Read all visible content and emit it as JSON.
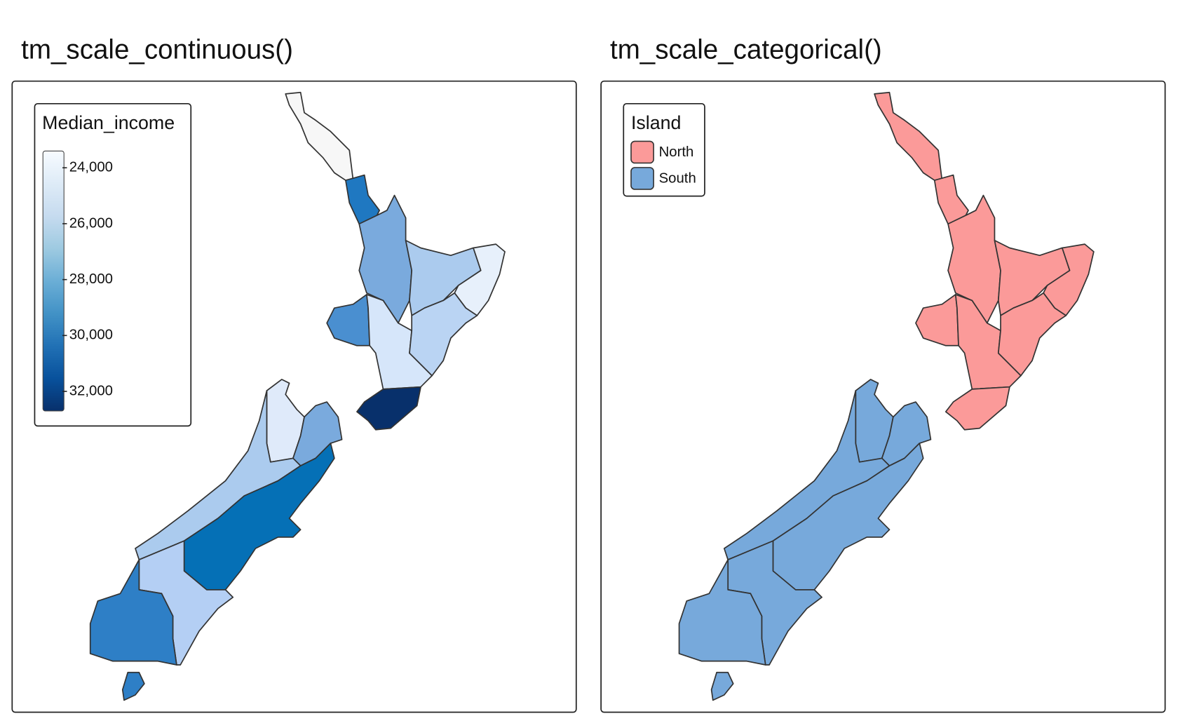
{
  "panels": [
    {
      "title": "tm_scale_continuous()",
      "legend": {
        "title": "Median_income",
        "range": [
          23400,
          32700
        ],
        "colors": [
          "#f7fbff",
          "#deebf7",
          "#c6dbef",
          "#9ecae1",
          "#6baed6",
          "#4292c6",
          "#2171b5",
          "#08519c",
          "#08306b"
        ],
        "ticks": [
          {
            "value": 24000,
            "label": "24,000"
          },
          {
            "value": 26000,
            "label": "26,000"
          },
          {
            "value": 28000,
            "label": "28,000"
          },
          {
            "value": 30000,
            "label": "30,000"
          },
          {
            "value": 32000,
            "label": "32,000"
          }
        ]
      }
    },
    {
      "title": "tm_scale_categorical()",
      "legend": {
        "title": "Island",
        "items": [
          {
            "label": "North",
            "color": "#fb9a99"
          },
          {
            "label": "South",
            "color": "#77a9db"
          }
        ]
      }
    }
  ]
}
